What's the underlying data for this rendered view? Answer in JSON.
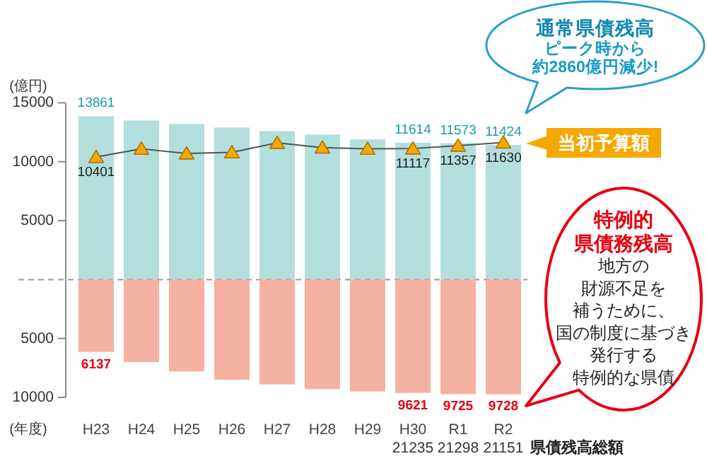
{
  "chart_data": [
    {
      "type": "bar",
      "categories": [
        null,
        null,
        null,
        null,
        null,
        null,
        null,
        null,
        null,
        null
      ],
      "ylabel": "(億円)",
      "ylim": [
        0,
        15000
      ],
      "yticks": [
        5000,
        10000,
        15000
      ],
      "tick_labels": "y",
      "series": [
        {
          "color": "#b2dfdd",
          "values": [
            13861,
            13500,
            13200,
            12900,
            12600,
            12300,
            11900,
            11614,
            11573,
            11424
          ],
          "value_labels": [
            "13861",
            null,
            null,
            null,
            null,
            null,
            null,
            "11614",
            "11573",
            "11424"
          ]
        },
        {
          "name": "当初予算額",
          "type": "line",
          "color": "#f5a800",
          "marker": "triangle",
          "values": [
            10401,
            11100,
            10700,
            10800,
            11600,
            11200,
            11100,
            11117,
            11357,
            11630
          ],
          "value_labels": [
            "10401",
            null,
            null,
            null,
            null,
            null,
            null,
            "11117",
            "11357",
            "11630"
          ]
        }
      ],
      "ref_lines": [
        {
          "axis": "y",
          "value": 0,
          "color": "#999999",
          "line_style": "dashed"
        }
      ],
      "annotations": [
        "通常県債残高",
        "ピーク時から約2860億円減少!"
      ]
    },
    {
      "type": "bar",
      "categories": [
        "H23",
        "H24",
        "H25",
        "H26",
        "H27",
        "H28",
        "H29",
        "H30",
        "R1",
        "R2"
      ],
      "xlabel": "(年度)",
      "ylim": [
        10000,
        0
      ],
      "yticks": [
        5000,
        10000
      ],
      "series": [
        {
          "name": "特例的県債務残高",
          "color": "#f5b1a1",
          "values": [
            6137,
            7000,
            7800,
            8500,
            8900,
            9300,
            9500,
            9621,
            9725,
            9728
          ],
          "value_labels": [
            "6137",
            null,
            null,
            null,
            null,
            null,
            null,
            "9621",
            "9725",
            "9728"
          ]
        }
      ],
      "annotations": [
        "地方の財源不足を補うために、国の制度に基づき発行する特例的な県債",
        "県債残高総額",
        "21235",
        "21298",
        "21151"
      ]
    }
  ]
}
